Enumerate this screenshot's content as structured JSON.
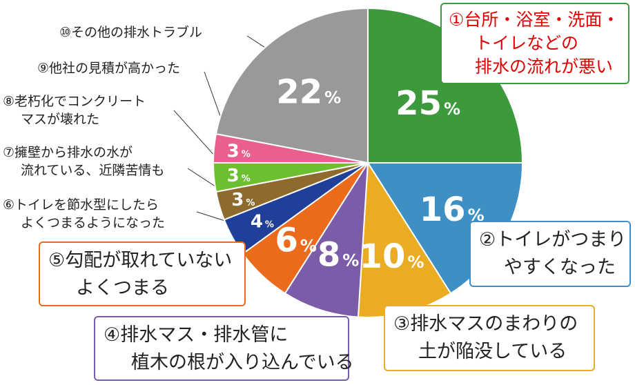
{
  "chart_data": {
    "type": "pie",
    "start_angle_deg": 0,
    "direction": "clockwise",
    "slices": [
      {
        "value": 25,
        "pct_label": "25",
        "color": "#3c9a3c",
        "label_lines": [
          "①台所・浴室・洗面・",
          "トイレなどの",
          "排水の流れが悪い"
        ]
      },
      {
        "value": 16,
        "pct_label": "16",
        "color": "#3d8fc4",
        "label_lines": [
          "②トイレがつまり",
          "やすくなった"
        ]
      },
      {
        "value": 10,
        "pct_label": "10",
        "color": "#e9ac23",
        "label_lines": [
          "③排水マスのまわりの",
          "土が陥没している"
        ]
      },
      {
        "value": 8,
        "pct_label": "8",
        "color": "#7a5ca8",
        "label_lines": [
          "④排水マス・排水管に",
          "植木の根が入り込んでいる"
        ]
      },
      {
        "value": 6,
        "pct_label": "6",
        "color": "#ec6a1c",
        "label_lines": [
          "⑤勾配が取れていない",
          "よくつまる"
        ]
      },
      {
        "value": 4,
        "pct_label": "4",
        "color": "#1f3f98",
        "label_lines": [
          "⑥トイレを節水型にしたら",
          "よくつまるようになった"
        ]
      },
      {
        "value": 3,
        "pct_label": "3",
        "color": "#8e6a2c",
        "label_lines": [
          "⑦擁壁から排水の水が",
          "流れている、近隣苦情も"
        ]
      },
      {
        "value": 3,
        "pct_label": "3",
        "color": "#6cbf2e",
        "label_lines": [
          "⑧老朽化でコンクリート",
          "マスが壊れた"
        ]
      },
      {
        "value": 3,
        "pct_label": "3",
        "color": "#e9608e",
        "label_lines": [
          "⑨他社の見積が高かった"
        ]
      },
      {
        "value": 22,
        "pct_label": "22",
        "color": "#999999",
        "label_lines": [
          "⑩その他の排水トラブル"
        ]
      }
    ],
    "percent_sign": "%",
    "label_text_colors": {
      "highlight": "#e00000",
      "normal": "#222222"
    },
    "box_border_colors": [
      "#3c9a3c",
      "#3d8fc4",
      "#e9ac23",
      "#7a5ca8",
      "#ec6a1c"
    ]
  }
}
